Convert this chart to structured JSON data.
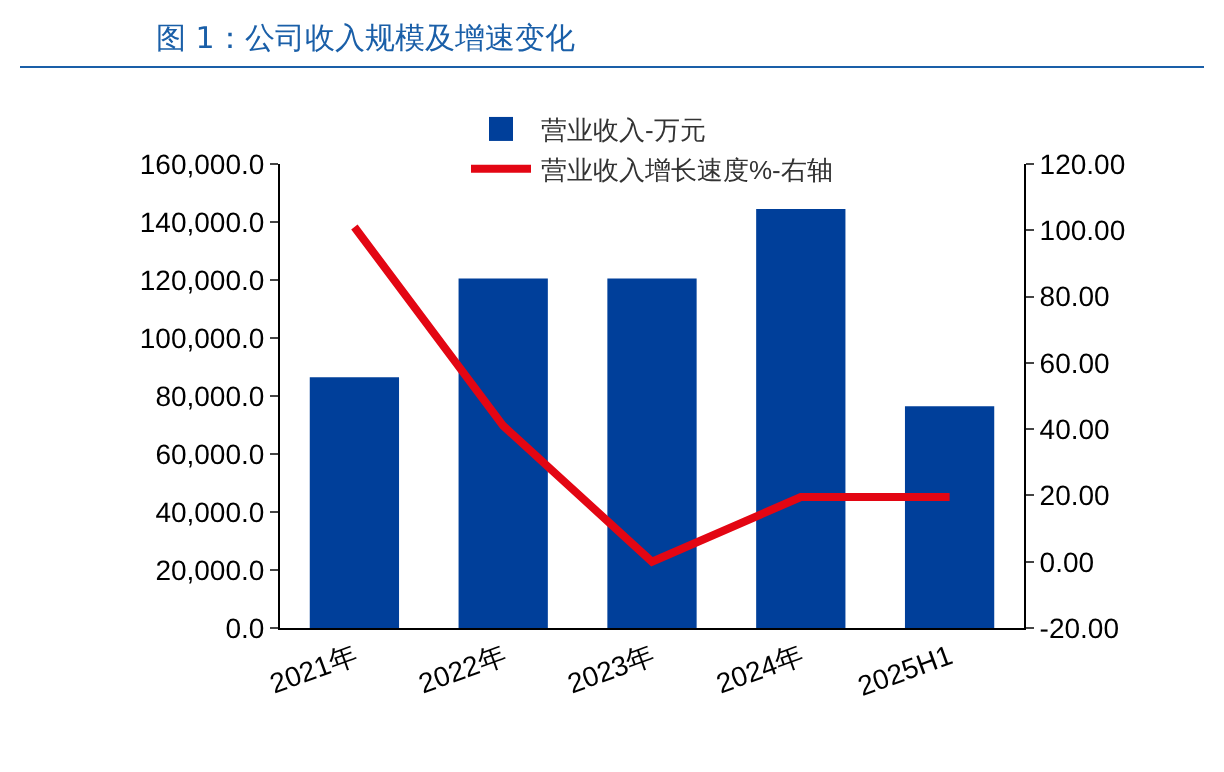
{
  "chart_data": {
    "type": "bar",
    "title": "图 1：公司收入规模及增速变化",
    "categories": [
      "2021年",
      "2022年",
      "2023年",
      "2024年",
      "2025H1"
    ],
    "series": [
      {
        "name": "营业收入-万元",
        "color": "#003f9a",
        "values": [
          86500,
          120500,
          120500,
          144500,
          76500
        ]
      },
      {
        "name": "营业收入增长速度%-右轴",
        "type": "line",
        "axis": "y2",
        "color": "#e30613",
        "values": [
          101,
          41,
          0,
          19.5,
          19.5
        ]
      }
    ],
    "ylim": [
      0,
      160000
    ],
    "yticks": [
      {
        "value": 0,
        "label": "0.0"
      },
      {
        "value": 20000,
        "label": "20,000.0"
      },
      {
        "value": 40000,
        "label": "40,000.0"
      },
      {
        "value": 60000,
        "label": "60,000.0"
      },
      {
        "value": 80000,
        "label": "80,000.0"
      },
      {
        "value": 100000,
        "label": "100,000.0"
      },
      {
        "value": 120000,
        "label": "120,000.0"
      },
      {
        "value": 140000,
        "label": "140,000.0"
      },
      {
        "value": 160000,
        "label": "160,000.0"
      }
    ],
    "y2lim": [
      -20,
      120
    ],
    "y2ticks": [
      {
        "value": -20,
        "label": "-20.00"
      },
      {
        "value": 0,
        "label": "0.00"
      },
      {
        "value": 20,
        "label": "20.00"
      },
      {
        "value": 40,
        "label": "40.00"
      },
      {
        "value": 60,
        "label": "60.00"
      },
      {
        "value": 80,
        "label": "80.00"
      },
      {
        "value": 100,
        "label": "100.00"
      },
      {
        "value": 120,
        "label": "120.00"
      }
    ],
    "legend": "top",
    "grid": false,
    "marker": "none",
    "line_style": "solid"
  }
}
